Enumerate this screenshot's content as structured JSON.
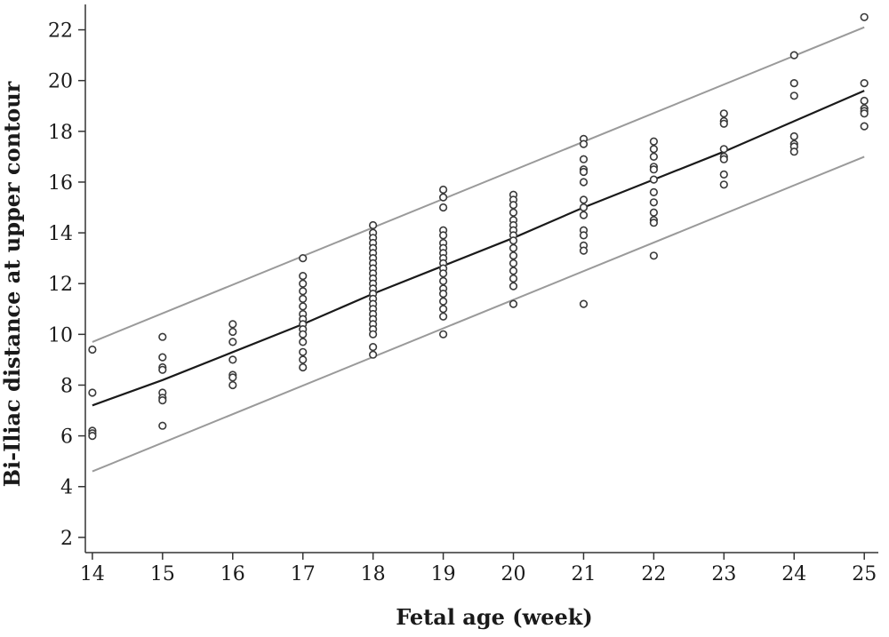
{
  "chart_data": {
    "type": "scatter",
    "title": "",
    "xlabel": "Fetal age (week)",
    "ylabel": "Bi-Iliac distance at upper contour",
    "xlim": [
      13.9,
      25.2
    ],
    "ylim": [
      1.4,
      23.0
    ],
    "xticks": [
      14,
      15,
      16,
      17,
      18,
      19,
      20,
      21,
      22,
      23,
      24,
      25
    ],
    "yticks": [
      2,
      4,
      6,
      8,
      10,
      12,
      14,
      16,
      18,
      20,
      22
    ],
    "grid": false,
    "legend": "none",
    "colors": {
      "points": "#3a3a3a",
      "fit_line": "#1a1a1a",
      "bound_lines": "#9a9a9a",
      "axes": "#333333"
    },
    "series": [
      {
        "kind": "points",
        "points": [
          [
            14,
            9.4
          ],
          [
            14,
            7.7
          ],
          [
            14,
            6.2
          ],
          [
            14,
            6.1
          ],
          [
            14,
            6.0
          ],
          [
            15,
            9.9
          ],
          [
            15,
            9.1
          ],
          [
            15,
            8.7
          ],
          [
            15,
            8.6
          ],
          [
            15,
            7.7
          ],
          [
            15,
            7.5
          ],
          [
            15,
            7.4
          ],
          [
            15,
            6.4
          ],
          [
            16,
            10.4
          ],
          [
            16,
            10.1
          ],
          [
            16,
            9.7
          ],
          [
            16,
            9.0
          ],
          [
            16,
            8.4
          ],
          [
            16,
            8.3
          ],
          [
            16,
            8.0
          ],
          [
            17,
            13.0
          ],
          [
            17,
            12.3
          ],
          [
            17,
            12.0
          ],
          [
            17,
            11.7
          ],
          [
            17,
            11.4
          ],
          [
            17,
            11.1
          ],
          [
            17,
            10.8
          ],
          [
            17,
            10.6
          ],
          [
            17,
            10.4
          ],
          [
            17,
            10.2
          ],
          [
            17,
            10.0
          ],
          [
            17,
            9.7
          ],
          [
            17,
            9.3
          ],
          [
            17,
            9.0
          ],
          [
            17,
            8.7
          ],
          [
            18,
            14.3
          ],
          [
            18,
            14.0
          ],
          [
            18,
            13.8
          ],
          [
            18,
            13.6
          ],
          [
            18,
            13.4
          ],
          [
            18,
            13.2
          ],
          [
            18,
            13.0
          ],
          [
            18,
            12.8
          ],
          [
            18,
            12.6
          ],
          [
            18,
            12.4
          ],
          [
            18,
            12.2
          ],
          [
            18,
            12.0
          ],
          [
            18,
            11.8
          ],
          [
            18,
            11.6
          ],
          [
            18,
            11.4
          ],
          [
            18,
            11.2
          ],
          [
            18,
            11.0
          ],
          [
            18,
            10.8
          ],
          [
            18,
            10.6
          ],
          [
            18,
            10.4
          ],
          [
            18,
            10.2
          ],
          [
            18,
            10.0
          ],
          [
            18,
            9.5
          ],
          [
            18,
            9.2
          ],
          [
            19,
            15.7
          ],
          [
            19,
            15.4
          ],
          [
            19,
            15.0
          ],
          [
            19,
            14.1
          ],
          [
            19,
            13.9
          ],
          [
            19,
            13.6
          ],
          [
            19,
            13.4
          ],
          [
            19,
            13.2
          ],
          [
            19,
            13.0
          ],
          [
            19,
            12.8
          ],
          [
            19,
            12.6
          ],
          [
            19,
            12.4
          ],
          [
            19,
            12.1
          ],
          [
            19,
            11.8
          ],
          [
            19,
            11.6
          ],
          [
            19,
            11.3
          ],
          [
            19,
            11.0
          ],
          [
            19,
            10.7
          ],
          [
            19,
            10.0
          ],
          [
            20,
            15.5
          ],
          [
            20,
            15.3
          ],
          [
            20,
            15.1
          ],
          [
            20,
            14.8
          ],
          [
            20,
            14.5
          ],
          [
            20,
            14.3
          ],
          [
            20,
            14.1
          ],
          [
            20,
            13.9
          ],
          [
            20,
            13.7
          ],
          [
            20,
            13.4
          ],
          [
            20,
            13.1
          ],
          [
            20,
            12.8
          ],
          [
            20,
            12.5
          ],
          [
            20,
            12.2
          ],
          [
            20,
            11.9
          ],
          [
            20,
            11.2
          ],
          [
            21,
            17.7
          ],
          [
            21,
            17.5
          ],
          [
            21,
            16.9
          ],
          [
            21,
            16.5
          ],
          [
            21,
            16.4
          ],
          [
            21,
            16.0
          ],
          [
            21,
            15.3
          ],
          [
            21,
            15.0
          ],
          [
            21,
            14.7
          ],
          [
            21,
            14.1
          ],
          [
            21,
            13.9
          ],
          [
            21,
            13.5
          ],
          [
            21,
            13.3
          ],
          [
            21,
            11.2
          ],
          [
            22,
            17.6
          ],
          [
            22,
            17.3
          ],
          [
            22,
            17.0
          ],
          [
            22,
            16.6
          ],
          [
            22,
            16.5
          ],
          [
            22,
            16.1
          ],
          [
            22,
            15.6
          ],
          [
            22,
            15.2
          ],
          [
            22,
            14.8
          ],
          [
            22,
            14.5
          ],
          [
            22,
            14.4
          ],
          [
            22,
            13.1
          ],
          [
            23,
            18.7
          ],
          [
            23,
            18.4
          ],
          [
            23,
            18.3
          ],
          [
            23,
            17.3
          ],
          [
            23,
            17.0
          ],
          [
            23,
            16.9
          ],
          [
            23,
            16.3
          ],
          [
            23,
            15.9
          ],
          [
            24,
            21.0
          ],
          [
            24,
            19.9
          ],
          [
            24,
            19.4
          ],
          [
            24,
            17.8
          ],
          [
            24,
            17.5
          ],
          [
            24,
            17.4
          ],
          [
            24,
            17.2
          ],
          [
            25,
            22.5
          ],
          [
            25,
            19.9
          ],
          [
            25,
            19.2
          ],
          [
            25,
            18.9
          ],
          [
            25,
            18.8
          ],
          [
            25,
            18.7
          ],
          [
            25,
            18.2
          ]
        ]
      },
      {
        "kind": "fit",
        "points": [
          [
            14,
            7.2
          ],
          [
            15,
            8.2
          ],
          [
            16,
            9.3
          ],
          [
            17,
            10.4
          ],
          [
            18,
            11.6
          ],
          [
            19,
            12.7
          ],
          [
            20,
            13.8
          ],
          [
            21,
            15.0
          ],
          [
            22,
            16.1
          ],
          [
            23,
            17.2
          ],
          [
            24,
            18.4
          ],
          [
            25,
            19.6
          ]
        ]
      },
      {
        "kind": "upper",
        "points": [
          [
            14,
            9.7
          ],
          [
            25,
            22.1
          ]
        ]
      },
      {
        "kind": "lower",
        "points": [
          [
            14,
            4.6
          ],
          [
            25,
            17.0
          ]
        ]
      }
    ]
  }
}
